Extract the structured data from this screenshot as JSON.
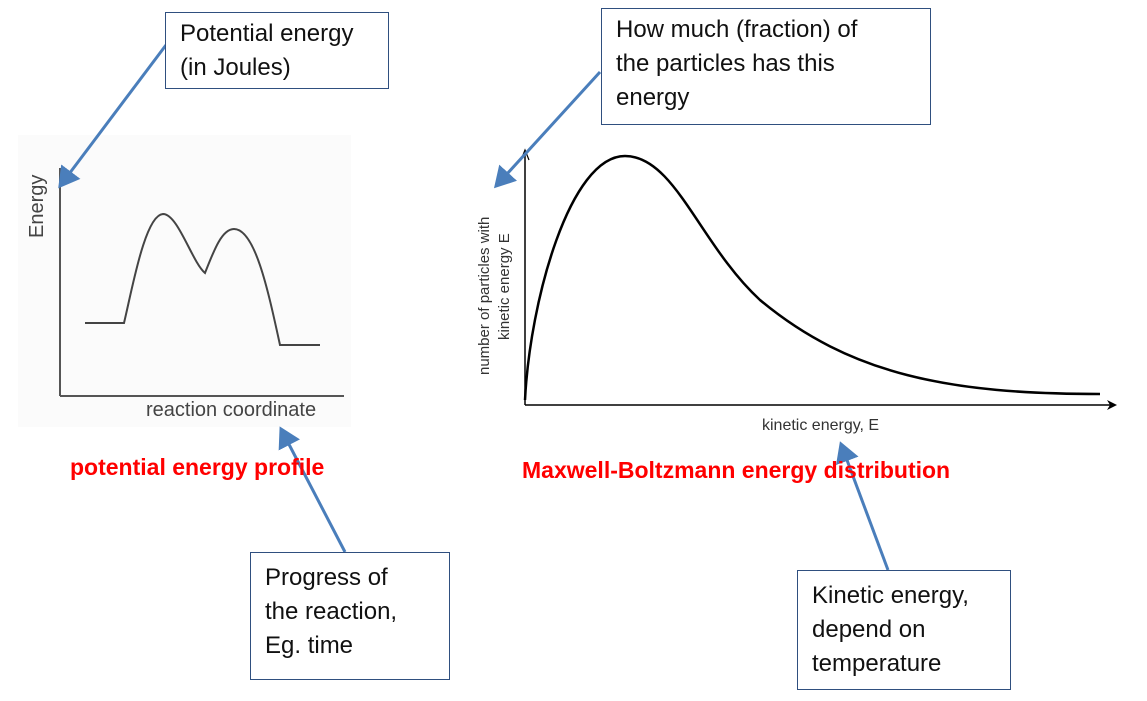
{
  "left_diagram": {
    "y_label": "Energy",
    "x_label": "reaction coordinate",
    "title": "potential energy profile"
  },
  "right_diagram": {
    "y_label_line1": "number of particles with",
    "y_label_line2": "kinetic energy E",
    "x_label": "kinetic energy, E",
    "title": "Maxwell-Boltzmann energy distribution"
  },
  "callouts": {
    "potential": [
      "Potential energy",
      "(in Joules)"
    ],
    "fraction": [
      "How much (fraction) of",
      "the particles has this",
      "energy"
    ],
    "progress": [
      "Progress of",
      "the reaction,",
      "Eg. time"
    ],
    "kinetic": [
      "Kinetic energy,",
      "depend on",
      "temperature"
    ]
  },
  "colors": {
    "title": "#ff0000",
    "arrow": "#4a7ebb",
    "box_border": "#2f4f7f"
  }
}
